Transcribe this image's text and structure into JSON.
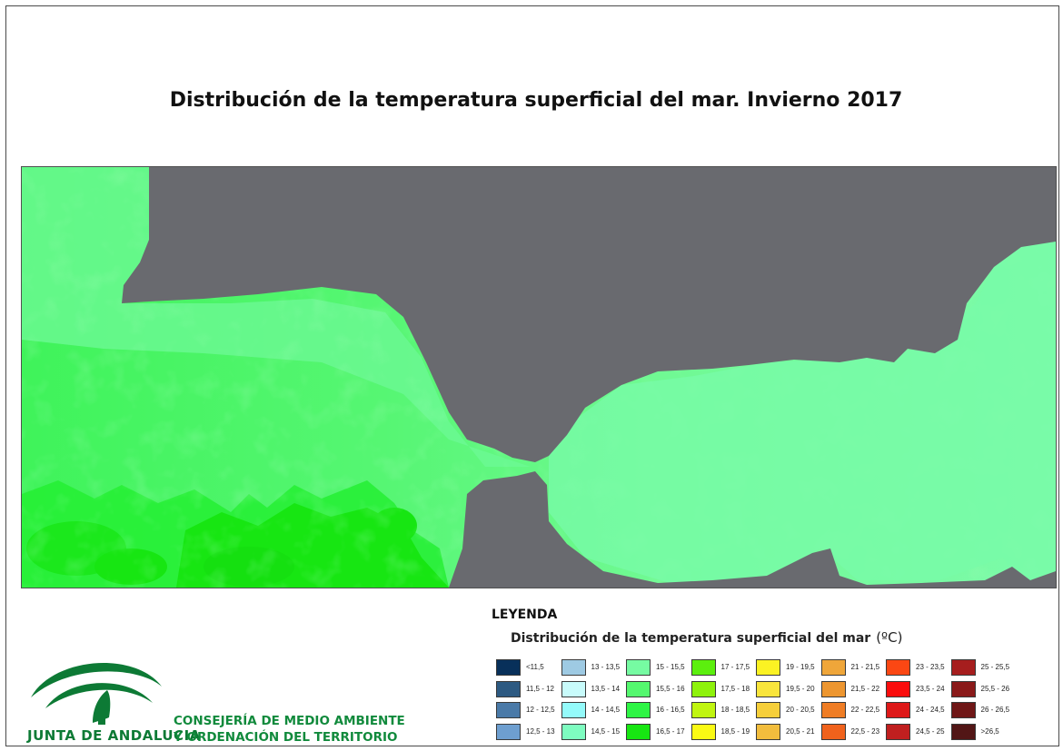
{
  "map": {
    "title": "Distribución de la temperatura superficial del mar. Invierno 2017",
    "land_color": "#696a6f",
    "dominant_sea_colors": [
      "#54f86f",
      "#76fba2",
      "#2ef545",
      "#17e612"
    ]
  },
  "legend": {
    "heading": "LEYENDA",
    "subtitle": "Distribución de la temperatura superficial del mar",
    "unit": "(ºC)",
    "columns": [
      [
        {
          "label": "<11,5",
          "color": "#08305a"
        },
        {
          "label": "11,5 - 12",
          "color": "#2d5a82"
        },
        {
          "label": "12 - 12,5",
          "color": "#4a7aa8"
        },
        {
          "label": "12,5 - 13",
          "color": "#6e9fd0"
        }
      ],
      [
        {
          "label": "13 - 13,5",
          "color": "#9ecae3"
        },
        {
          "label": "13,5 - 14",
          "color": "#c8fbfb"
        },
        {
          "label": "14 - 14,5",
          "color": "#94fafa"
        },
        {
          "label": "14,5 - 15",
          "color": "#7efcc0"
        }
      ],
      [
        {
          "label": "15 - 15,5",
          "color": "#76fba2"
        },
        {
          "label": "15,5 - 16",
          "color": "#54f86f"
        },
        {
          "label": "16 - 16,5",
          "color": "#2ef545"
        },
        {
          "label": "16,5 - 17",
          "color": "#17e612"
        }
      ],
      [
        {
          "label": "17 - 17,5",
          "color": "#5cef0e"
        },
        {
          "label": "17,5 - 18",
          "color": "#8ef20c"
        },
        {
          "label": "18 - 18,5",
          "color": "#c0f510"
        },
        {
          "label": "18,5 - 19",
          "color": "#fafa14"
        }
      ],
      [
        {
          "label": "19 - 19,5",
          "color": "#fbf223"
        },
        {
          "label": "19,5 - 20",
          "color": "#f9e53c"
        },
        {
          "label": "20 - 20,5",
          "color": "#f6cf3a"
        },
        {
          "label": "20,5 - 21",
          "color": "#f2bd3d"
        }
      ],
      [
        {
          "label": "21 - 21,5",
          "color": "#efa63a"
        },
        {
          "label": "21,5 - 22",
          "color": "#ed9630"
        },
        {
          "label": "22 - 22,5",
          "color": "#ef7d25"
        },
        {
          "label": "22,5 - 23",
          "color": "#f0621c"
        }
      ],
      [
        {
          "label": "23 - 23,5",
          "color": "#fb4713"
        },
        {
          "label": "23,5 - 24",
          "color": "#fa0d0d"
        },
        {
          "label": "24 - 24,5",
          "color": "#de1818"
        },
        {
          "label": "24,5 - 25",
          "color": "#c01f1f"
        }
      ],
      [
        {
          "label": "25 - 25,5",
          "color": "#a61e1e"
        },
        {
          "label": "25,5 - 26",
          "color": "#8a1a1a"
        },
        {
          "label": "26 - 26,5",
          "color": "#6f1717"
        },
        {
          "label": ">26,5",
          "color": "#521616"
        }
      ]
    ]
  },
  "logo": {
    "caption": "JUNTA DE ANDALUCIA",
    "color": "#0d7a35"
  },
  "agency": {
    "line1": "CONSEJERÍA DE MEDIO AMBIENTE",
    "line2": "Y ORDENACIÓN DEL TERRITORIO"
  }
}
